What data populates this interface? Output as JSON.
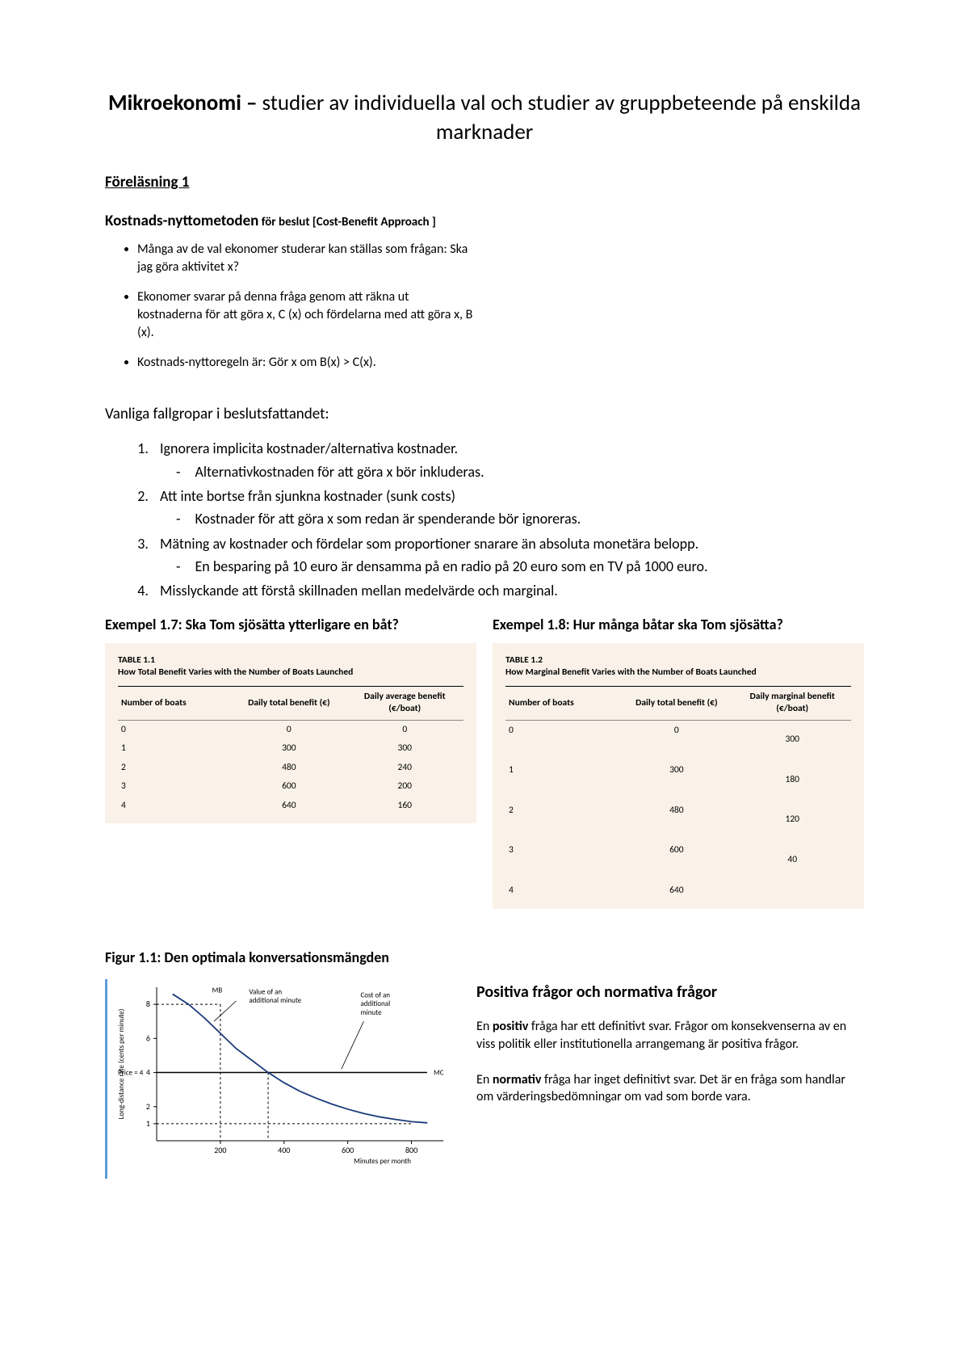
{
  "title_bold": "Mikroekonomi –",
  "title_rest": " studier av individuella val och studier av gruppbeteende på enskilda marknader",
  "lecture": "Föreläsning 1",
  "costbenefit_big": "Kostnads-nyttometoden",
  "costbenefit_small": " för beslut [Cost-Benefit Approach ]",
  "bullets": [
    "Många av de val ekonomer studerar kan ställas som frågan: Ska jag göra aktivitet x?",
    "Ekonomer svarar på denna fråga genom att räkna ut kostnaderna för att göra x, C (x) och fördelarna med att göra x, B (x).",
    "Kostnads-nyttoregeln är: Gör x om B(x) > C(x)."
  ],
  "pitfalls_heading": "Vanliga fallgropar i beslutsfattandet:",
  "pitfalls": [
    {
      "text": "Ignorera implicita kostnader/alternativa kostnader.",
      "sub": "Alternativkostnaden för att göra x bör inkluderas."
    },
    {
      "text": "Att inte bortse från sjunkna kostnader (sunk costs)",
      "sub": "Kostnader för att göra x som redan är spenderande bör ignoreras."
    },
    {
      "text": "Mätning av kostnader och fördelar som proportioner snarare än absoluta monetära belopp.",
      "sub": "En besparing på 10 euro är densamma på en radio på 20 euro som en TV på 1000 euro."
    },
    {
      "text": "Misslyckande att förstå skillnaden mellan medelvärde och marginal.",
      "sub": null
    }
  ],
  "example17_title": "Exempel 1.7: Ska Tom sjösätta ytterligare en båt?",
  "example18_title": "Exempel 1.8: Hur många båtar ska Tom sjösätta?",
  "table11": {
    "label": "TABLE 1.1",
    "caption": "How Total Benefit Varies with the Number of Boats Launched",
    "columns": [
      "Number of boats",
      "Daily total benefit (€)",
      "Daily average benefit (€/boat)"
    ],
    "rows": [
      [
        "0",
        "0",
        "0"
      ],
      [
        "1",
        "300",
        "300"
      ],
      [
        "2",
        "480",
        "240"
      ],
      [
        "3",
        "600",
        "200"
      ],
      [
        "4",
        "640",
        "160"
      ]
    ],
    "background_color": "#faf2e8"
  },
  "table12": {
    "label": "TABLE 1.2",
    "caption": "How Marginal Benefit Varies with the Number of Boats Launched",
    "columns": [
      "Number of boats",
      "Daily total benefit (€)",
      "Daily marginal benefit (€/boat)"
    ],
    "rows_left": [
      [
        "0",
        "0"
      ],
      [
        "1",
        "300"
      ],
      [
        "2",
        "480"
      ],
      [
        "3",
        "600"
      ],
      [
        "4",
        "640"
      ]
    ],
    "marginals": [
      "300",
      "180",
      "120",
      "40"
    ],
    "background_color": "#faf2e8"
  },
  "figure_title": "Figur 1.1: Den optimala konversationsmängden",
  "chart": {
    "type": "line",
    "xlabel": "Minutes per month",
    "ylabel": "Long-distance rate (cents per minute)",
    "xlim": [
      0,
      900
    ],
    "ylim": [
      0,
      9
    ],
    "xticks": [
      200,
      400,
      600,
      800
    ],
    "yticks": [
      1,
      2,
      4,
      6,
      8
    ],
    "mc_y": 4,
    "mc_label": "MC",
    "mb_label": "MB",
    "price_label": "Price = 4",
    "value_label": "Value of an additional minute",
    "cost_label": "Cost of an additional minute",
    "mb_points": [
      [
        50,
        8.6
      ],
      [
        100,
        8.0
      ],
      [
        150,
        7.2
      ],
      [
        200,
        6.3
      ],
      [
        250,
        5.4
      ],
      [
        300,
        4.7
      ],
      [
        350,
        4.0
      ],
      [
        400,
        3.4
      ],
      [
        450,
        2.9
      ],
      [
        500,
        2.5
      ],
      [
        550,
        2.15
      ],
      [
        600,
        1.85
      ],
      [
        650,
        1.6
      ],
      [
        700,
        1.4
      ],
      [
        750,
        1.25
      ],
      [
        800,
        1.12
      ],
      [
        850,
        1.05
      ]
    ],
    "intersect_x": 350,
    "dash_x1": 200,
    "dash_y1": 8,
    "dash_yb": 1,
    "colors": {
      "mb": "#1a3a7a",
      "mc": "#000000",
      "grid": "#000000",
      "dash": "#000000"
    },
    "line_width_mb": 1.8,
    "line_width_mc": 1.5
  },
  "posneg_heading": "Positiva frågor och normativa frågor",
  "pos_b": "positiv",
  "pos_text_pre": "En ",
  "pos_text_post": " fråga har ett definitivt svar. Frågor om konsekvenserna av en viss politik eller institutionella arrangemang är positiva frågor.",
  "norm_b": "normativ",
  "norm_text_pre": "En ",
  "norm_text_post": " fråga har inget definitivt svar. Det är en fråga som handlar om värderingsbedömningar om vad som borde vara."
}
